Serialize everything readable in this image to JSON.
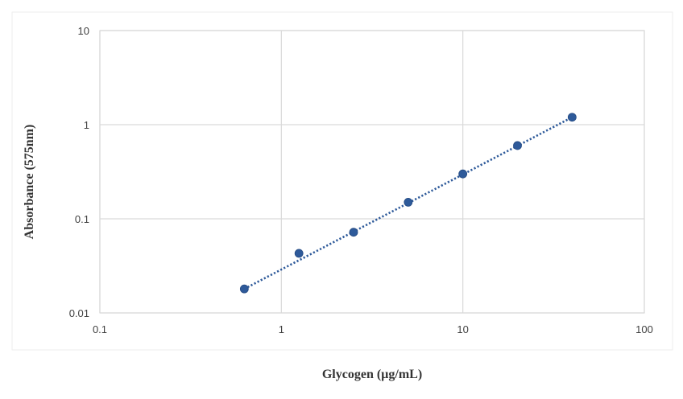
{
  "chart_data": {
    "type": "scatter",
    "title": "",
    "xlabel": "Glycogen (µg/mL)",
    "ylabel": "Absorbance (575nm)",
    "x_scale": "log",
    "y_scale": "log",
    "xlim": [
      0.1,
      100
    ],
    "ylim": [
      0.01,
      10
    ],
    "x_ticks": [
      0.1,
      1,
      10,
      100
    ],
    "x_tick_labels": [
      "0.1",
      "1",
      "10",
      "100"
    ],
    "y_ticks": [
      0.01,
      0.1,
      1,
      10
    ],
    "y_tick_labels": [
      "0.01",
      "0.1",
      "1",
      "10"
    ],
    "grid": true,
    "legend": "none",
    "series": [
      {
        "x": [
          0.625,
          1.25,
          2.5,
          5,
          10,
          20,
          40
        ],
        "y": [
          0.018,
          0.043,
          0.072,
          0.15,
          0.3,
          0.6,
          1.2
        ],
        "marker_color": "#2e5a9a",
        "trendline": {
          "style": "dotted",
          "color": "#2e5a9a",
          "x_range": [
            0.625,
            40
          ],
          "y_range": [
            0.018,
            1.2
          ]
        }
      }
    ],
    "colors": {
      "grid": "#d9d9d9",
      "frame": "#d9d9d9",
      "tick_text": "#404040",
      "axis_title": "#333333"
    }
  }
}
